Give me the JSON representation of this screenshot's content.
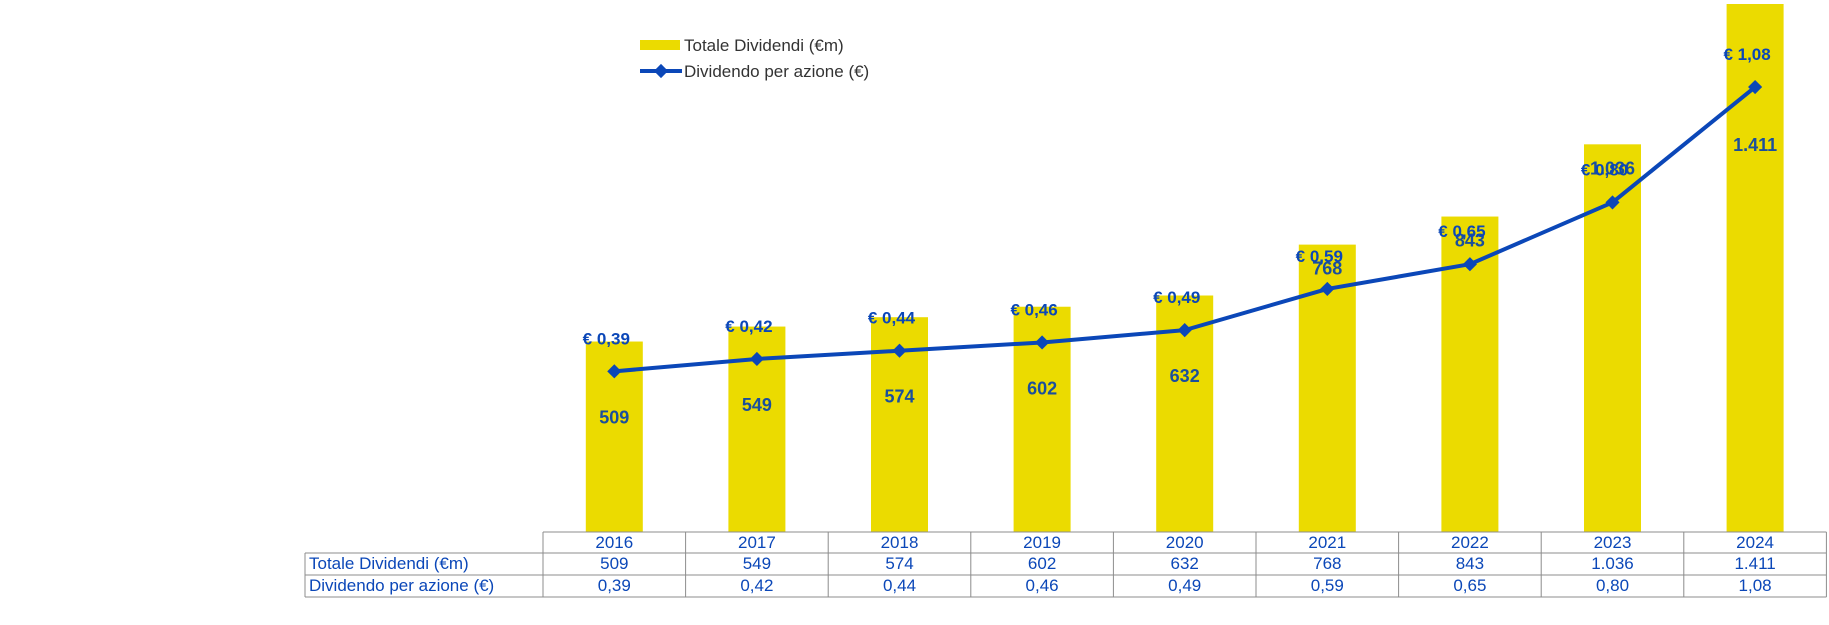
{
  "chart_data": {
    "type": "bar",
    "categories": [
      "2016",
      "2017",
      "2018",
      "2019",
      "2020",
      "2021",
      "2022",
      "2023",
      "2024"
    ],
    "series": [
      {
        "name": "Totale Dividendi (€m)",
        "kind": "bar",
        "color": "#EBDB00",
        "values": [
          509,
          549,
          574,
          602,
          632,
          768,
          843,
          1036,
          1411
        ],
        "value_labels": [
          "509",
          "549",
          "574",
          "602",
          "632",
          "768",
          "843",
          "1.036",
          "1.411"
        ]
      },
      {
        "name": "Dividendo per azione (€)",
        "kind": "line",
        "color": "#0B47B8",
        "values": [
          0.39,
          0.42,
          0.44,
          0.46,
          0.49,
          0.59,
          0.65,
          0.8,
          1.08
        ],
        "value_labels": [
          "€ 0,39",
          "€ 0,42",
          "€ 0,44",
          "€ 0,46",
          "€ 0,49",
          "€ 0,59",
          "€ 0,65",
          "€ 0,80",
          "€ 1,08"
        ]
      }
    ],
    "legend": [
      "Totale Dividendi (€m)",
      "Dividendo per azione (€)"
    ],
    "legend_position": "top-left",
    "table": {
      "row_headers": [
        "Totale Dividendi (€m)",
        "Dividendo per azione (€)"
      ],
      "rows": [
        [
          "509",
          "549",
          "574",
          "602",
          "632",
          "768",
          "843",
          "1.036",
          "1.411"
        ],
        [
          "0,39",
          "0,42",
          "0,44",
          "0,46",
          "0,49",
          "0,59",
          "0,65",
          "0,80",
          "1,08"
        ]
      ]
    },
    "title": "",
    "xlabel": "",
    "ylabel": ""
  }
}
